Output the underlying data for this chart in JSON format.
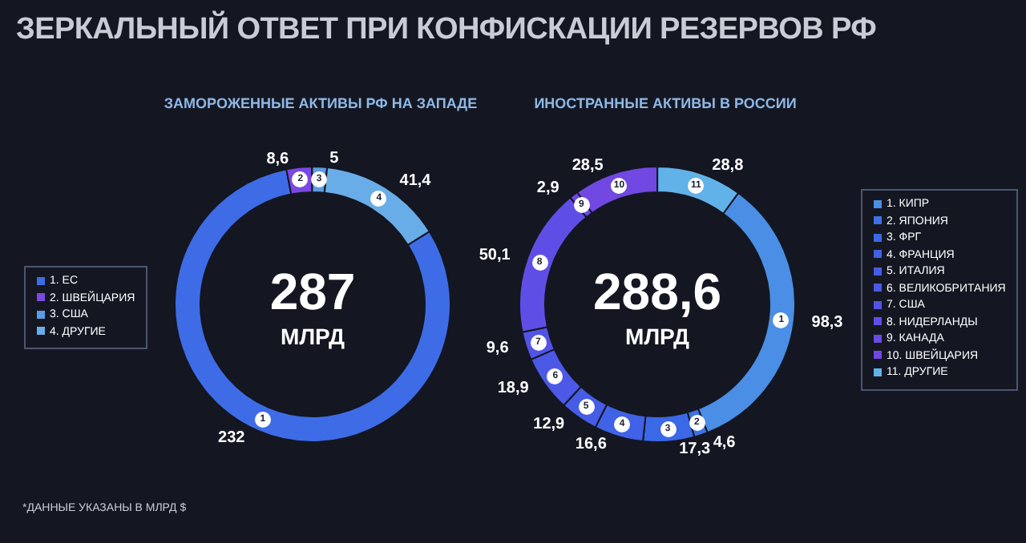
{
  "chart_data": [
    {
      "type": "donut",
      "title": "ЗЕРКАЛЬНЫЙ ОТВЕТ ПРИ КОНФИСКАЦИИ РЕЗЕРВОВ РФ",
      "subtitle": "ЗАМОРОЖЕННЫЕ АКТИВЫ РФ НА ЗАПАДЕ",
      "categories": [
        "1. ЕС",
        "2. ШВЕЙЦАРИЯ",
        "3. США",
        "4. ДРУГИЕ"
      ],
      "values": [
        232,
        8.6,
        5,
        41.4
      ],
      "value_labels": [
        "232",
        "8,6",
        "5",
        "41,4"
      ],
      "colors": [
        "#3d6ce6",
        "#7a48e2",
        "#5a9de2",
        "#68ade8"
      ],
      "legend": "left",
      "annotations": [
        "287",
        "МЛРД",
        "1",
        "2",
        "3",
        "4",
        "*ДАННЫЕ УКАЗАНЫ В МЛРД $"
      ]
    },
    {
      "type": "donut",
      "subtitle": "ИНОСТРАННЫЕ АКТИВЫ В РОССИИ",
      "categories": [
        "1. КИПР",
        "2. ЯПОНИЯ",
        "3. ФРГ",
        "4. ФРАНЦИЯ",
        "5. ИТАЛИЯ",
        "6. ВЕЛИКОБРИТАНИЯ",
        "7. США",
        "8. НИДЕРЛАНДЫ",
        "9. КАНАДА",
        "10. ШВЕЙЦАРИЯ",
        "11. ДРУГИЕ"
      ],
      "values": [
        98.3,
        4.6,
        17.3,
        16.6,
        12.9,
        18.9,
        9.6,
        50.1,
        2.9,
        28.5,
        28.8
      ],
      "value_labels": [
        "98,3",
        "4,6",
        "17,3",
        "16,6",
        "12,9",
        "18,9",
        "9,6",
        "50,1",
        "2,9",
        "28,5",
        "28,8"
      ],
      "colors": [
        "#4a8ee6",
        "#3c72e6",
        "#3b68e6",
        "#3f62e6",
        "#455ce6",
        "#4c58e6",
        "#5254e6",
        "#5f4ee6",
        "#694ae4",
        "#7148e2",
        "#62b2ea"
      ],
      "legend": "right",
      "annotations": [
        "288,6",
        "МЛРД",
        "1",
        "2",
        "3",
        "4",
        "5",
        "6",
        "7",
        "8",
        "9",
        "10",
        "11"
      ]
    }
  ]
}
